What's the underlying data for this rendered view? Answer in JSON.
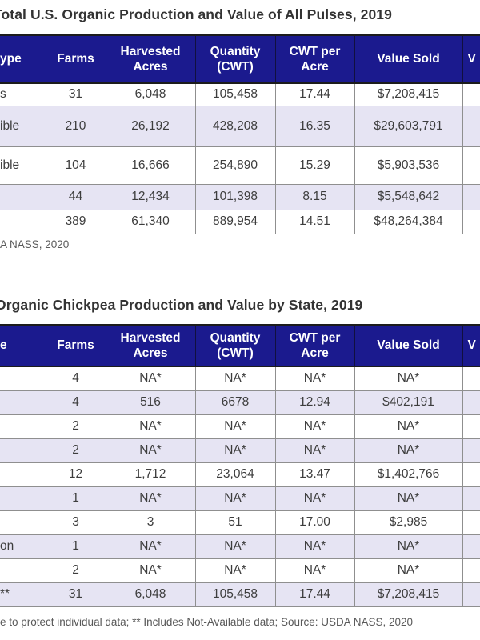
{
  "colors": {
    "header_bg": "#1b1a8e",
    "row_alt_bg": "#e6e4f3",
    "header_text": "#ffffff",
    "body_text": "#3d3d3d"
  },
  "table1": {
    "title": "Total U.S. Organic Production and Value of All Pulses, 2019",
    "source": "A NASS, 2020",
    "columns": [
      "ype",
      "Farms",
      "Harvested\nAcres",
      "Quantity\n(CWT)",
      "CWT per\nAcre",
      "Value Sold",
      "V"
    ],
    "rows": [
      [
        "s",
        "31",
        "6,048",
        "105,458",
        "17.44",
        "$7,208,415",
        ""
      ],
      [
        "ible",
        "210",
        "26,192",
        "428,208",
        "16.35",
        "$29,603,791",
        ""
      ],
      [
        "ible",
        "104",
        "16,666",
        "254,890",
        "15.29",
        "$5,903,536",
        ""
      ],
      [
        "",
        "44",
        "12,434",
        "101,398",
        "8.15",
        "$5,548,642",
        ""
      ],
      [
        "",
        "389",
        "61,340",
        "889,954",
        "14.51",
        "$48,264,384",
        ""
      ]
    ]
  },
  "table2": {
    "title": "Organic Chickpea Production and Value by State, 2019",
    "footnote": "e to protect individual data;  ** Includes Not-Available data;  Source: USDA NASS, 2020",
    "columns": [
      "e",
      "Farms",
      "Harvested\nAcres",
      "Quantity\n(CWT)",
      "CWT per\nAcre",
      "Value Sold",
      "V"
    ],
    "rows": [
      [
        "",
        "4",
        "NA*",
        "NA*",
        "NA*",
        "NA*",
        ""
      ],
      [
        "",
        "4",
        "516",
        "6678",
        "12.94",
        "$402,191",
        ""
      ],
      [
        "",
        "2",
        "NA*",
        "NA*",
        "NA*",
        "NA*",
        ""
      ],
      [
        "",
        "2",
        "NA*",
        "NA*",
        "NA*",
        "NA*",
        ""
      ],
      [
        "",
        "12",
        "1,712",
        "23,064",
        "13.47",
        "$1,402,766",
        ""
      ],
      [
        "",
        "1",
        "NA*",
        "NA*",
        "NA*",
        "NA*",
        ""
      ],
      [
        "",
        "3",
        "3",
        "51",
        "17.00",
        "$2,985",
        ""
      ],
      [
        "on",
        "1",
        "NA*",
        "NA*",
        "NA*",
        "NA*",
        ""
      ],
      [
        "",
        "2",
        "NA*",
        "NA*",
        "NA*",
        "NA*",
        ""
      ],
      [
        "**",
        "31",
        "6,048",
        "105,458",
        "17.44",
        "$7,208,415",
        ""
      ]
    ]
  }
}
